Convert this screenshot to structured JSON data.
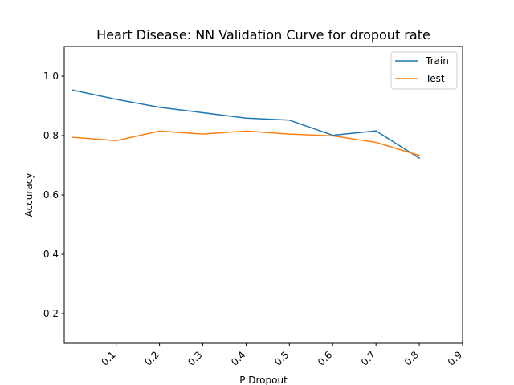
{
  "chart_data": {
    "type": "line",
    "title": "Heart Disease: NN Validation Curve for dropout rate",
    "xlabel": "P Dropout",
    "ylabel": "Accuracy",
    "xlim": [
      -0.02,
      0.9
    ],
    "ylim": [
      0.1,
      1.1
    ],
    "xticks": [
      "0.1",
      "0.2",
      "0.3",
      "0.4",
      "0.5",
      "0.6",
      "0.7",
      "0.8",
      "0.9"
    ],
    "yticks": [
      "0.2",
      "0.4",
      "0.6",
      "0.8",
      "1.0"
    ],
    "x": [
      0.0,
      0.1,
      0.2,
      0.3,
      0.4,
      0.5,
      0.6,
      0.7,
      0.8
    ],
    "series": [
      {
        "name": "Train",
        "color": "#1f77b4",
        "values": [
          0.953,
          0.922,
          0.895,
          0.877,
          0.859,
          0.852,
          0.801,
          0.816,
          0.724
        ]
      },
      {
        "name": "Test",
        "color": "#ff7f0e",
        "values": [
          0.794,
          0.783,
          0.815,
          0.805,
          0.815,
          0.805,
          0.799,
          0.777,
          0.733
        ]
      }
    ],
    "legend_position": "top-right",
    "grid": false
  }
}
